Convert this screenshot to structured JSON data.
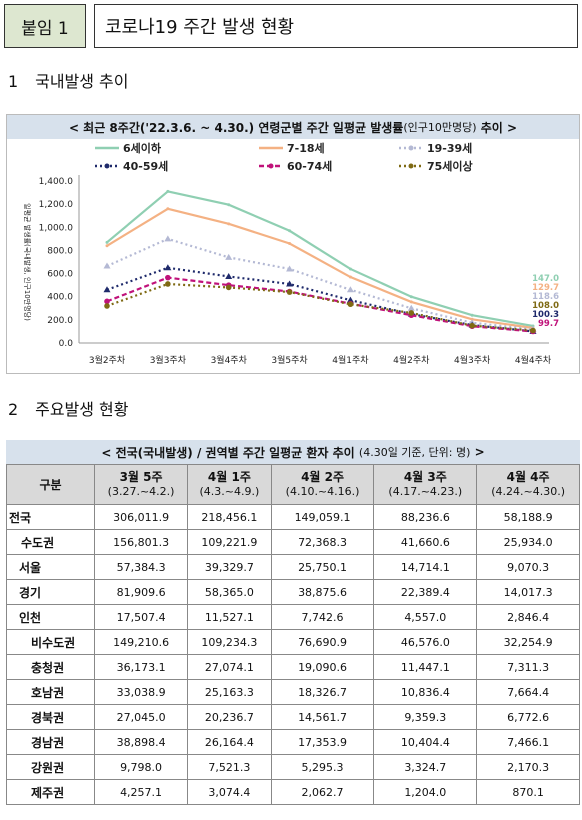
{
  "header": {
    "tag": "붙임 1",
    "title": "코로나19 주간 발생 현황"
  },
  "section1": {
    "num": "1",
    "title": "국내발생 추이"
  },
  "section2": {
    "num": "2",
    "title": "주요발생 현황"
  },
  "chart_data": {
    "type": "line",
    "title": "< 최근 8주간('22.3.6. ~ 4.30.) 연령군별 주간 일평균 발생률",
    "title_note": "(인구10만명당)",
    "title_end": "추이 >",
    "ylabel": "일평균 발생률(국내발생, 인구10만명당)",
    "ylim": [
      0,
      1400
    ],
    "yticks": [
      "0.0",
      "200.0",
      "400.0",
      "600.0",
      "800.0",
      "1,000.0",
      "1,200.0",
      "1,400.0"
    ],
    "categories": [
      "3월2주차",
      "3월3주차",
      "3월4주차",
      "3월5주차",
      "4월1주차",
      "4월2주차",
      "4월3주차",
      "4월4주차"
    ],
    "legend_position": "top",
    "series": [
      {
        "name": "6세이하",
        "color": "#8fcfb2",
        "dash": "solid",
        "marker": "none",
        "values": [
          870,
          1310,
          1195,
          970,
          640,
          400,
          240,
          147.0
        ]
      },
      {
        "name": "7-18세",
        "color": "#f4b183",
        "dash": "solid",
        "marker": "none",
        "values": [
          840,
          1160,
          1030,
          860,
          570,
          355,
          205,
          129.7
        ]
      },
      {
        "name": "19-39세",
        "color": "#b4b9d4",
        "dash": "dotted",
        "marker": "triangle",
        "values": [
          665,
          900,
          740,
          640,
          460,
          300,
          175,
          118.6
        ]
      },
      {
        "name": "40-59세",
        "color": "#1f2a6b",
        "dash": "dotted",
        "marker": "triangle",
        "values": [
          460,
          650,
          575,
          510,
          370,
          250,
          155,
          100.3
        ]
      },
      {
        "name": "60-74세",
        "color": "#c0127a",
        "dash": "dashed",
        "marker": "circle",
        "values": [
          360,
          565,
          500,
          445,
          340,
          240,
          145,
          99.7
        ]
      },
      {
        "name": "75세이상",
        "color": "#7f6a14",
        "dash": "dotted",
        "marker": "circle",
        "values": [
          320,
          510,
          480,
          440,
          335,
          260,
          150,
          108.0
        ]
      }
    ],
    "end_labels": [
      {
        "text": "147.0",
        "color": "#8fcfb2"
      },
      {
        "text": "129.7",
        "color": "#f4b183"
      },
      {
        "text": "118.6",
        "color": "#b4b9d4"
      },
      {
        "text": "108.0",
        "color": "#7f6a14"
      },
      {
        "text": "100.3",
        "color": "#1f2a6b"
      },
      {
        "text": "99.7",
        "color": "#c0127a"
      }
    ]
  },
  "table": {
    "title": "< 전국(국내발생) / 권역별 주간 일평균 환자 추이",
    "title_note": "(4.30일 기준, 단위: 명)",
    "title_end": ">",
    "corner": "구분",
    "columns": [
      {
        "label": "3월 5주",
        "sub": "(3.27.~4.2.)"
      },
      {
        "label": "4월 1주",
        "sub": "(4.3.~4.9.)"
      },
      {
        "label": "4월 2주",
        "sub": "(4.10.~4.16.)"
      },
      {
        "label": "4월 3주",
        "sub": "(4.17.~4.23.)"
      },
      {
        "label": "4월 4주",
        "sub": "(4.24.~4.30.)"
      }
    ],
    "rows": [
      {
        "label": "전국",
        "level": 0,
        "values": [
          "306,011.9",
          "218,456.1",
          "149,059.1",
          "88,236.6",
          "58,188.9"
        ]
      },
      {
        "label": "수도권",
        "level": 1,
        "values": [
          "156,801.3",
          "109,221.9",
          "72,368.3",
          "41,660.6",
          "25,934.0"
        ]
      },
      {
        "label": "서울",
        "level": 2,
        "values": [
          "57,384.3",
          "39,329.7",
          "25,750.1",
          "14,714.1",
          "9,070.3"
        ]
      },
      {
        "label": "경기",
        "level": 2,
        "values": [
          "81,909.6",
          "58,365.0",
          "38,875.6",
          "22,389.4",
          "14,017.3"
        ]
      },
      {
        "label": "인천",
        "level": 2,
        "values": [
          "17,507.4",
          "11,527.1",
          "7,742.6",
          "4,557.0",
          "2,846.4"
        ]
      },
      {
        "label": "비수도권",
        "level": 3,
        "values": [
          "149,210.6",
          "109,234.3",
          "76,690.9",
          "46,576.0",
          "32,254.9"
        ]
      },
      {
        "label": "충청권",
        "level": 3,
        "values": [
          "36,173.1",
          "27,074.1",
          "19,090.6",
          "11,447.1",
          "7,311.3"
        ]
      },
      {
        "label": "호남권",
        "level": 3,
        "values": [
          "33,038.9",
          "25,163.3",
          "18,326.7",
          "10,836.4",
          "7,664.4"
        ]
      },
      {
        "label": "경북권",
        "level": 3,
        "values": [
          "27,045.0",
          "20,236.7",
          "14,561.7",
          "9,359.3",
          "6,772.6"
        ]
      },
      {
        "label": "경남권",
        "level": 3,
        "values": [
          "38,898.4",
          "26,164.4",
          "17,353.9",
          "10,404.4",
          "7,466.1"
        ]
      },
      {
        "label": "강원권",
        "level": 3,
        "values": [
          "9,798.0",
          "7,521.3",
          "5,295.3",
          "3,324.7",
          "2,170.3"
        ]
      },
      {
        "label": "제주권",
        "level": 3,
        "values": [
          "4,257.1",
          "3,074.4",
          "2,062.7",
          "1,204.0",
          "870.1"
        ]
      }
    ]
  }
}
